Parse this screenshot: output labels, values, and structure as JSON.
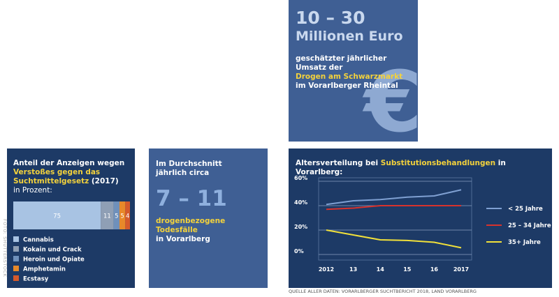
{
  "photo_credit": "FOTO: SHUTTERSTOCK",
  "revenue_box": {
    "figure": "10 – 30",
    "unit": "Millionen Euro",
    "text": "geschätzter jährlicher Umsatz der",
    "highlight": "Drogen am Schwarzmarkt",
    "text_end": "im Vorarlberger Rheintal",
    "symbol": "€"
  },
  "deaths_box": {
    "text": "Im Durchschnitt jährlich circa",
    "figure": "7 – 11",
    "highlight": "drogenbezogene Todesfälle",
    "text_end": "in Vorarlberg"
  },
  "source": "QUELLE ALLER DATEN: VORARLBERGER SUCHTBERICHT 2018, LAND VORARLBERG",
  "chart_data": [
    {
      "type": "stacked_bar",
      "title": "Anteil der Anzeigen wegen",
      "title_highlight": "Verstoßes gegen das Suchtmittelgesetz",
      "title_suffix": "(2017)",
      "subtitle": "in Prozent:",
      "series": [
        {
          "name": "Cannabis",
          "color": "#a8c3e3",
          "values": [
            75
          ]
        },
        {
          "name": "Kokain und Crack",
          "color": "#8f9fb5",
          "values": [
            11
          ]
        },
        {
          "name": "Heroin und Opiate",
          "color": "#6f90bb",
          "values": [
            5
          ]
        },
        {
          "name": "Amphetamin",
          "color": "#e8892a",
          "values": [
            5
          ]
        },
        {
          "name": "Ecstasy",
          "color": "#d65a2b",
          "values": [
            4
          ]
        }
      ]
    },
    {
      "type": "line",
      "title": "Altersverteilung bei",
      "title_highlight": "Substitutionsbehandlungen",
      "title_suffix": "in Vorarlberg:",
      "categories": [
        "2012",
        "13",
        "14",
        "15",
        "16",
        "2017"
      ],
      "ylim": [
        0,
        60
      ],
      "yticks": [
        {
          "value": 0,
          "label": "0%"
        },
        {
          "value": 20,
          "label": "20%"
        },
        {
          "value": 40,
          "label": "40%"
        },
        {
          "value": 60,
          "label": "60%"
        }
      ],
      "grid": true,
      "series": [
        {
          "name": "< 25 Jahre",
          "color": "#7fa0d2",
          "values": [
            41,
            44,
            45,
            47,
            48,
            53
          ]
        },
        {
          "name": "25 – 34 Jahre",
          "color": "#d8322c",
          "values": [
            37,
            38,
            40,
            40,
            40,
            40
          ]
        },
        {
          "name": "35+ Jahre",
          "color": "#f2e13a",
          "values": [
            20,
            16,
            12,
            11.5,
            10,
            5.5
          ]
        }
      ]
    }
  ]
}
